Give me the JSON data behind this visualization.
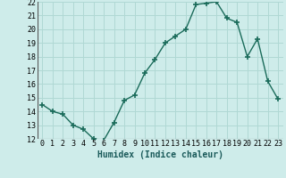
{
  "x": [
    0,
    1,
    2,
    3,
    4,
    5,
    6,
    7,
    8,
    9,
    10,
    11,
    12,
    13,
    14,
    15,
    16,
    17,
    18,
    19,
    20,
    21,
    22,
    23
  ],
  "y": [
    14.5,
    14.0,
    13.8,
    13.0,
    12.7,
    12.0,
    11.9,
    13.2,
    14.8,
    15.2,
    16.8,
    17.8,
    19.0,
    19.5,
    20.0,
    21.8,
    21.9,
    22.0,
    20.8,
    20.5,
    18.0,
    19.3,
    16.2,
    14.9
  ],
  "line_color": "#1a6b5a",
  "marker_color": "#1a6b5a",
  "bg_color": "#ceecea",
  "grid_color": "#b0d8d4",
  "xlabel": "Humidex (Indice chaleur)",
  "ylim": [
    12,
    22
  ],
  "xlim": [
    -0.5,
    23.5
  ],
  "yticks": [
    12,
    13,
    14,
    15,
    16,
    17,
    18,
    19,
    20,
    21,
    22
  ],
  "xticks": [
    0,
    1,
    2,
    3,
    4,
    5,
    6,
    7,
    8,
    9,
    10,
    11,
    12,
    13,
    14,
    15,
    16,
    17,
    18,
    19,
    20,
    21,
    22,
    23
  ],
  "tick_fontsize": 6,
  "xlabel_fontsize": 7
}
